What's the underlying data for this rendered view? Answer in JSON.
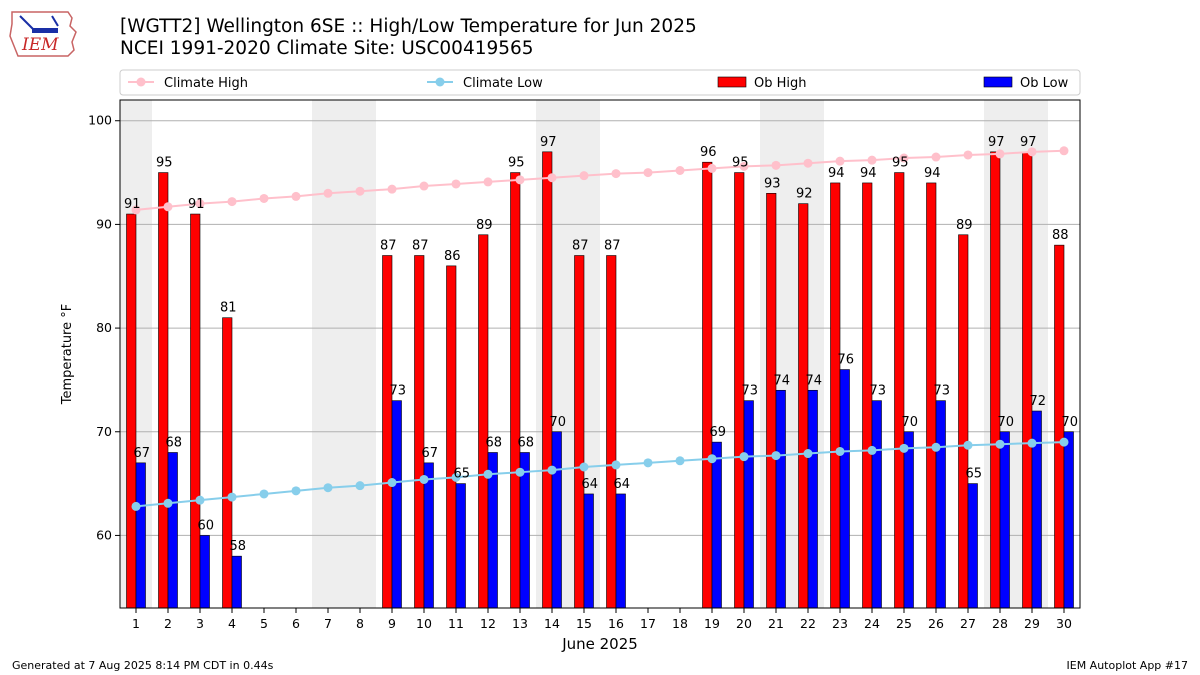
{
  "logo": {
    "text": "IEM",
    "icon": "iowa-state-outline-logo"
  },
  "header": {
    "title": "[WGTT2] Wellington 6SE :: High/Low Temperature for Jun 2025",
    "subtitle": "NCEI 1991-2020 Climate Site: USC00419565"
  },
  "footer": {
    "generated": "Generated at 7 Aug 2025 8:14 PM CDT in 0.44s",
    "app": "IEM Autoplot App #17"
  },
  "colors": {
    "ob_high": "#ff0000",
    "ob_low": "#0000ff",
    "climate_high": "#ffc0cb",
    "climate_low": "#87ceeb",
    "weekend_shade": "#eeeeee",
    "grid": "#b0b0b0"
  },
  "chart_data": {
    "type": "bar",
    "xlabel": "June 2025",
    "ylabel": "Temperature °F",
    "ylim": [
      53,
      102
    ],
    "yticks": [
      60,
      70,
      80,
      90,
      100
    ],
    "grid": "horizontal",
    "legend_placement": "top",
    "categories": [
      1,
      2,
      3,
      4,
      5,
      6,
      7,
      8,
      9,
      10,
      11,
      12,
      13,
      14,
      15,
      16,
      17,
      18,
      19,
      20,
      21,
      22,
      23,
      24,
      25,
      26,
      27,
      28,
      29,
      30
    ],
    "shaded_days": [
      1,
      7,
      8,
      14,
      15,
      21,
      22,
      28,
      29
    ],
    "series": [
      {
        "name": "Ob High",
        "kind": "bar",
        "values": [
          91,
          95,
          91,
          81,
          null,
          null,
          null,
          null,
          87,
          87,
          86,
          89,
          95,
          97,
          87,
          87,
          null,
          null,
          96,
          95,
          93,
          92,
          94,
          94,
          95,
          94,
          89,
          97,
          97,
          88
        ]
      },
      {
        "name": "Ob Low",
        "kind": "bar",
        "values": [
          67,
          68,
          60,
          58,
          null,
          null,
          null,
          null,
          73,
          67,
          65,
          68,
          68,
          70,
          64,
          64,
          null,
          null,
          69,
          73,
          74,
          74,
          76,
          73,
          70,
          73,
          65,
          70,
          72,
          70
        ]
      },
      {
        "name": "Climate High",
        "kind": "line",
        "values": [
          91.4,
          91.7,
          92.0,
          92.2,
          92.5,
          92.7,
          93.0,
          93.2,
          93.4,
          93.7,
          93.9,
          94.1,
          94.3,
          94.5,
          94.7,
          94.9,
          95.0,
          95.2,
          95.4,
          95.6,
          95.7,
          95.9,
          96.1,
          96.2,
          96.4,
          96.5,
          96.7,
          96.8,
          97.0,
          97.1
        ]
      },
      {
        "name": "Climate Low",
        "kind": "line",
        "values": [
          62.8,
          63.1,
          63.4,
          63.7,
          64.0,
          64.3,
          64.6,
          64.8,
          65.1,
          65.4,
          65.6,
          65.9,
          66.1,
          66.3,
          66.6,
          66.8,
          67.0,
          67.2,
          67.4,
          67.6,
          67.7,
          67.9,
          68.1,
          68.2,
          68.4,
          68.5,
          68.7,
          68.8,
          68.9,
          69.0
        ]
      }
    ]
  }
}
